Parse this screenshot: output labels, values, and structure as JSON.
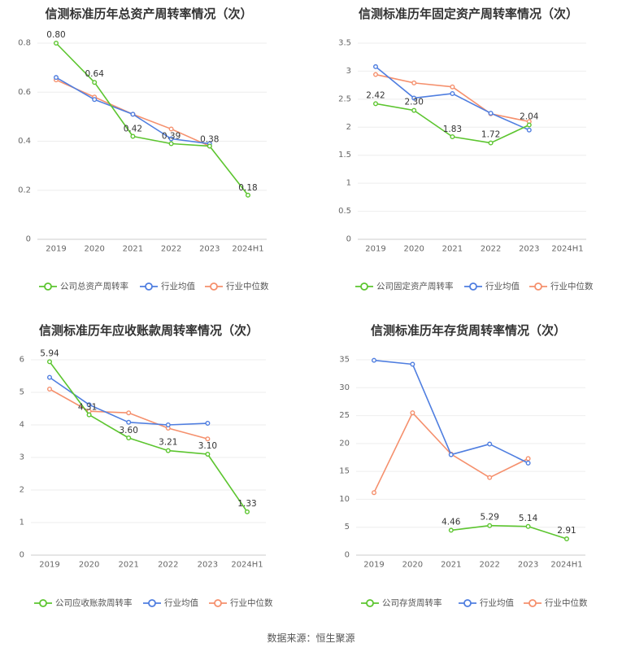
{
  "colors": {
    "company": "#5cc52f",
    "avg": "#4f7ee0",
    "median": "#f5906d"
  },
  "source": "数据来源：恒生聚源",
  "chart_data": [
    {
      "type": "line",
      "title": "信测标准历年总资产周转率情况（次）",
      "categories": [
        "2019",
        "2020",
        "2021",
        "2022",
        "2023",
        "2024H1"
      ],
      "ylim": [
        0,
        0.8
      ],
      "yticks": [
        "0",
        "0.2",
        "0.4",
        "0.6",
        "0.8"
      ],
      "ytick_values": [
        0,
        0.2,
        0.4,
        0.6,
        0.8
      ],
      "grid": true,
      "legend_position": "bottom",
      "series": [
        {
          "name": "公司总资产周转率",
          "color_key": "company",
          "values": [
            0.8,
            0.64,
            0.42,
            0.39,
            0.38,
            0.18
          ],
          "labels": [
            "0.80",
            "0.64",
            "0.42",
            "0.39",
            "0.38",
            "0.18"
          ]
        },
        {
          "name": "行业均值",
          "color_key": "avg",
          "values": [
            0.66,
            0.57,
            0.51,
            0.41,
            0.39,
            null
          ]
        },
        {
          "name": "行业中位数",
          "color_key": "median",
          "values": [
            0.65,
            0.58,
            0.51,
            0.45,
            0.38,
            null
          ]
        }
      ]
    },
    {
      "type": "line",
      "title": "信测标准历年固定资产周转率情况（次）",
      "categories": [
        "2019",
        "2020",
        "2021",
        "2022",
        "2023",
        "2024H1"
      ],
      "ylim": [
        0,
        3.5
      ],
      "yticks": [
        "0",
        "0.5",
        "1",
        "1.5",
        "2",
        "2.5",
        "3",
        "3.5"
      ],
      "ytick_values": [
        0,
        0.5,
        1,
        1.5,
        2,
        2.5,
        3,
        3.5
      ],
      "grid": true,
      "legend_position": "bottom",
      "series": [
        {
          "name": "公司固定资产周转率",
          "color_key": "company",
          "values": [
            2.42,
            2.3,
            1.83,
            1.72,
            2.04,
            null
          ],
          "labels": [
            "2.42",
            "2.30",
            "1.83",
            "1.72",
            "2.04",
            ""
          ]
        },
        {
          "name": "行业均值",
          "color_key": "avg",
          "values": [
            3.08,
            2.52,
            2.6,
            2.25,
            1.95,
            null
          ]
        },
        {
          "name": "行业中位数",
          "color_key": "median",
          "values": [
            2.94,
            2.79,
            2.72,
            2.24,
            2.1,
            null
          ]
        }
      ]
    },
    {
      "type": "line",
      "title": "信测标准历年应收账款周转率情况（次）",
      "categories": [
        "2019",
        "2020",
        "2021",
        "2022",
        "2023",
        "2024H1"
      ],
      "ylim": [
        0,
        6
      ],
      "yticks": [
        "0",
        "1",
        "2",
        "3",
        "4",
        "5",
        "6"
      ],
      "ytick_values": [
        0,
        1,
        2,
        3,
        4,
        5,
        6
      ],
      "grid": true,
      "legend_position": "bottom",
      "series": [
        {
          "name": "公司应收账款周转率",
          "color_key": "company",
          "values": [
            5.94,
            4.31,
            3.6,
            3.21,
            3.1,
            1.33
          ],
          "labels": [
            "5.94",
            "4.31",
            "3.60",
            "3.21",
            "3.10",
            "1.33"
          ]
        },
        {
          "name": "行业均值",
          "color_key": "avg",
          "values": [
            5.46,
            4.62,
            4.08,
            4.0,
            4.05,
            null
          ]
        },
        {
          "name": "行业中位数",
          "color_key": "median",
          "values": [
            5.1,
            4.42,
            4.37,
            3.9,
            3.57,
            null
          ]
        }
      ]
    },
    {
      "type": "line",
      "title": "信测标准历年存货周转率情况（次）",
      "categories": [
        "2019",
        "2020",
        "2021",
        "2022",
        "2023",
        "2024H1"
      ],
      "ylim": [
        0,
        35
      ],
      "yticks": [
        "0",
        "5",
        "10",
        "15",
        "20",
        "25",
        "30",
        "35"
      ],
      "ytick_values": [
        0,
        5,
        10,
        15,
        20,
        25,
        30,
        35
      ],
      "grid": true,
      "legend_position": "bottom",
      "series": [
        {
          "name": "公司存货周转率",
          "color_key": "company",
          "values": [
            null,
            null,
            4.46,
            5.29,
            5.14,
            2.91
          ],
          "labels": [
            "",
            "",
            "4.46",
            "5.29",
            "5.14",
            "2.91"
          ]
        },
        {
          "name": "行业均值",
          "color_key": "avg",
          "values": [
            34.9,
            34.2,
            18.0,
            19.9,
            16.5,
            null
          ]
        },
        {
          "name": "行业中位数",
          "color_key": "median",
          "values": [
            11.2,
            25.5,
            18.1,
            13.9,
            17.3,
            null
          ]
        }
      ]
    }
  ]
}
